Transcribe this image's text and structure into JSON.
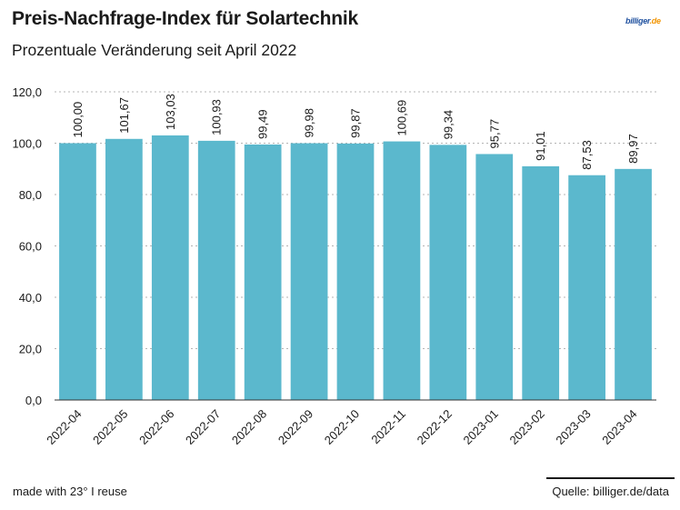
{
  "header": {
    "title": "Preis-Nachfrage-Index für Solartechnik",
    "subtitle": "Prozentuale Veränderung seit April 2022"
  },
  "logo": {
    "text_main": "billiger",
    "text_dot": ".de"
  },
  "footer": {
    "made_with": "made with 23° I reuse",
    "source": "Quelle: billiger.de/data"
  },
  "colors": {
    "bar": "#5bb8cd",
    "grid": "#b5b5b5",
    "text": "#1a1a1a"
  },
  "chart_data": {
    "type": "bar",
    "categories": [
      "2022-04",
      "2022-05",
      "2022-06",
      "2022-07",
      "2022-08",
      "2022-09",
      "2022-10",
      "2022-11",
      "2022-12",
      "2023-01",
      "2023-02",
      "2023-03",
      "2023-04"
    ],
    "values": [
      100.0,
      101.67,
      103.03,
      100.93,
      99.49,
      99.98,
      99.87,
      100.69,
      99.34,
      95.77,
      91.01,
      87.53,
      89.97
    ],
    "value_labels": [
      "100,00",
      "101,67",
      "103,03",
      "100,93",
      "99,49",
      "99,98",
      "99,87",
      "100,69",
      "99,34",
      "95,77",
      "91,01",
      "87,53",
      "89,97"
    ],
    "yticks": [
      0,
      20,
      40,
      60,
      80,
      100,
      120
    ],
    "ytick_labels": [
      "0,0",
      "20,0",
      "40,0",
      "60,0",
      "80,0",
      "100,0",
      "120,0"
    ],
    "ylim": [
      0,
      120
    ],
    "grid": true,
    "xlabel": "",
    "ylabel": ""
  }
}
